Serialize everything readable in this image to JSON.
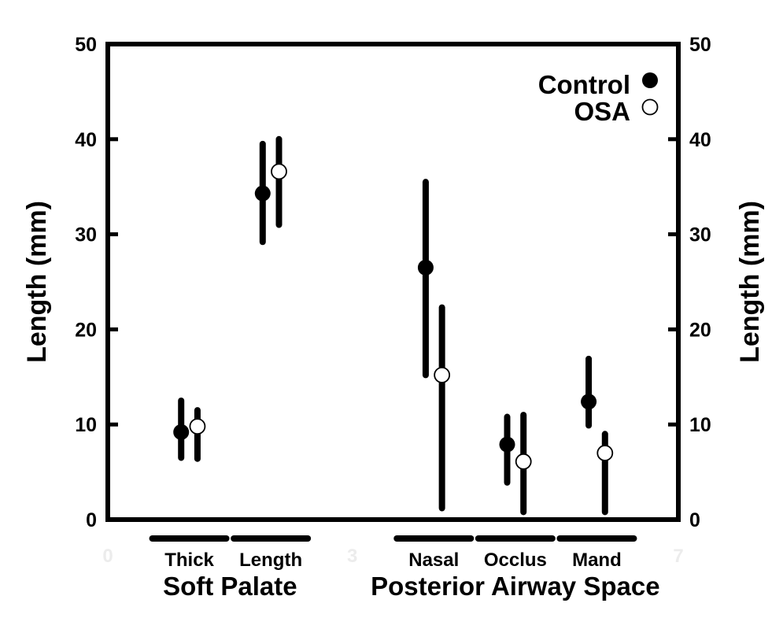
{
  "chart_data": {
    "type": "scatter",
    "ylabel_left": "Length (mm)",
    "ylabel_right": "Length (mm)",
    "ylim": [
      0,
      50
    ],
    "xlim": [
      0,
      7
    ],
    "y_ticks": [
      0,
      10,
      20,
      30,
      40,
      50
    ],
    "x_ticks_faint": [
      0,
      3,
      7
    ],
    "categories": [
      "Thick",
      "Length",
      "Nasal",
      "Occlus",
      "Mand"
    ],
    "category_positions": [
      1,
      2,
      4,
      5,
      6
    ],
    "groups": [
      {
        "label": "Soft Palate",
        "categories": [
          "Thick",
          "Length"
        ]
      },
      {
        "label": "Posterior Airway Space",
        "categories": [
          "Nasal",
          "Occlus",
          "Mand"
        ]
      }
    ],
    "legend_position": "top-right",
    "series": [
      {
        "name": "Control",
        "marker": "filled-circle",
        "x": [
          0.9,
          1.9,
          3.9,
          4.9,
          5.9
        ],
        "mean": [
          9.2,
          34.3,
          26.5,
          7.9,
          12.4
        ],
        "low": [
          6.5,
          29.2,
          15.2,
          3.9,
          9.9
        ],
        "high": [
          12.5,
          39.5,
          35.5,
          10.8,
          16.9
        ]
      },
      {
        "name": "OSA",
        "marker": "open-circle",
        "x": [
          1.1,
          2.1,
          4.1,
          5.1,
          6.1
        ],
        "mean": [
          9.8,
          36.6,
          15.2,
          6.1,
          7.0
        ],
        "low": [
          6.4,
          31.0,
          1.2,
          0.8,
          0.8
        ],
        "high": [
          11.5,
          40.0,
          22.3,
          11.0,
          9.0
        ]
      }
    ]
  }
}
